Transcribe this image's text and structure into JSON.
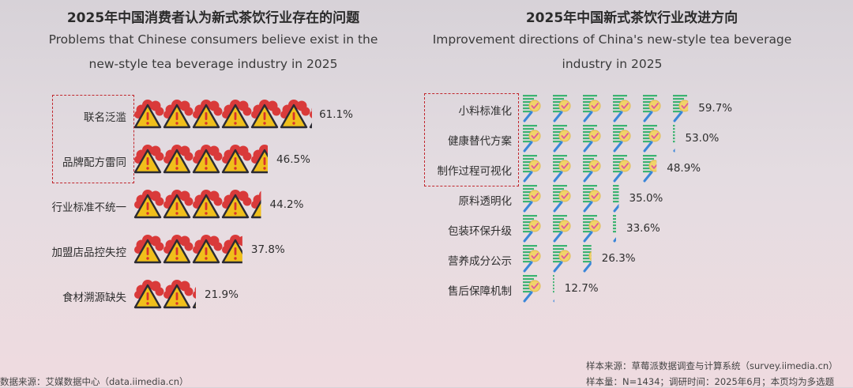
{
  "chart_data": [
    {
      "type": "bar",
      "title": "2025年中国消费者认为新式茶饮行业存在的问题",
      "subtitle": "Problems that Chinese consumers believe exist in the new-style tea beverage industry in 2025",
      "categories": [
        "联名泛滥",
        "品牌配方雷同",
        "行业标准不统一",
        "加盟店品控失控",
        "食材溯源缺失"
      ],
      "values": [
        61.1,
        46.5,
        44.2,
        37.8,
        21.9
      ],
      "labels": [
        "61.1%",
        "46.5%",
        "44.2%",
        "37.8%",
        "21.9%"
      ],
      "unit": "%",
      "icon": "warning-icon",
      "highlighted": [
        "联名泛滥",
        "品牌配方雷同"
      ],
      "colors": {
        "icon_fill": "#f0bf1b",
        "icon_outline": "#2b2b33",
        "icon_mark": "#d8322c",
        "cloud": "#d93a3a",
        "highlight": "#c1272d"
      }
    },
    {
      "type": "bar",
      "title": "2025年中国新式茶饮行业改进方向",
      "subtitle": "Improvement directions of China's new-style tea beverage industry in 2025",
      "categories": [
        "小料标准化",
        "健康替代方案",
        "制作过程可视化",
        "原料透明化",
        "包装环保升级",
        "营养成分公示",
        "售后保障机制"
      ],
      "values": [
        59.7,
        53.0,
        48.9,
        35.0,
        33.6,
        26.3,
        12.7
      ],
      "labels": [
        "59.7%",
        "53.0%",
        "48.9%",
        "35.0%",
        "33.6%",
        "26.3%",
        "12.7%"
      ],
      "unit": "%",
      "icon": "checklist-icon",
      "highlighted": [
        "小料标准化",
        "健康替代方案",
        "制作过程可视化"
      ],
      "colors": {
        "icon_lines": "#3cb371",
        "icon_badge": "#f1d36a",
        "icon_pencil": "#3a86d8",
        "highlight": "#c1272d"
      }
    }
  ],
  "footer": {
    "left": "数据来源：艾媒数据中心（data.iimedia.cn）",
    "right_source": "样本来源：草莓派数据调查与计算系统（survey.iimedia.cn）",
    "right_sample": "样本量：N=1434；调研时间：2025年6月；本页均为多选题"
  }
}
